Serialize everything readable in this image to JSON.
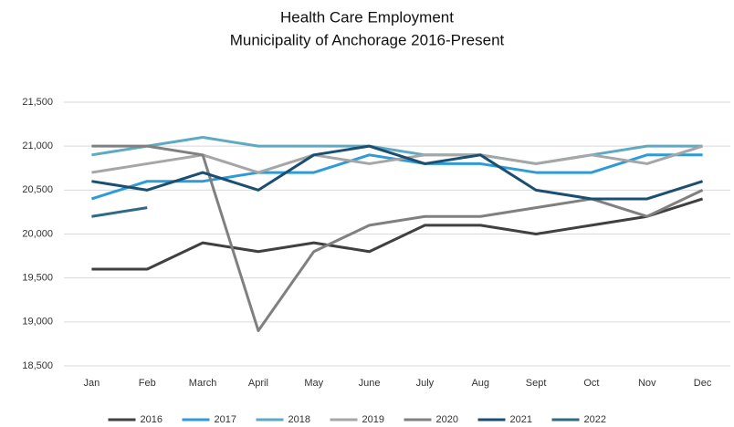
{
  "chart_data": {
    "type": "line",
    "title": "Health Care Employment",
    "subtitle": "Municipality of Anchorage 2016-Present",
    "categories": [
      "Jan",
      "Feb",
      "March",
      "April",
      "May",
      "June",
      "July",
      "Aug",
      "Sept",
      "Oct",
      "Nov",
      "Dec"
    ],
    "series": [
      {
        "name": "2016",
        "color": "#404040",
        "values": [
          19600,
          19600,
          19900,
          19800,
          19900,
          19800,
          20100,
          20100,
          20000,
          20100,
          20200,
          20400
        ]
      },
      {
        "name": "2017",
        "color": "#2e9bd6",
        "values": [
          20400,
          20600,
          20600,
          20700,
          20700,
          20900,
          20800,
          20800,
          20700,
          20700,
          20900,
          20900
        ]
      },
      {
        "name": "2018",
        "color": "#5fa9c2",
        "values": [
          20900,
          21000,
          21100,
          21000,
          21000,
          21000,
          20900,
          20900,
          20800,
          20900,
          21000,
          21000
        ]
      },
      {
        "name": "2019",
        "color": "#a6a6a6",
        "values": [
          20700,
          20800,
          20900,
          20700,
          20900,
          20800,
          20900,
          20900,
          20800,
          20900,
          20800,
          21000
        ]
      },
      {
        "name": "2020",
        "color": "#808080",
        "values": [
          21000,
          21000,
          20900,
          18900,
          19800,
          20100,
          20200,
          20200,
          20300,
          20400,
          20200,
          20500
        ]
      },
      {
        "name": "2021",
        "color": "#1b4f72",
        "values": [
          20600,
          20500,
          20700,
          20500,
          20900,
          21000,
          20800,
          20900,
          20500,
          20400,
          20400,
          20600
        ]
      },
      {
        "name": "2022",
        "color": "#2f6a82",
        "values": [
          20200,
          20300,
          null,
          null,
          null,
          null,
          null,
          null,
          null,
          null,
          null,
          null
        ]
      }
    ],
    "ylim": [
      18500,
      21500
    ],
    "yticks": [
      {
        "value": 18500,
        "label": "18,500"
      },
      {
        "value": 19000,
        "label": "19,000"
      },
      {
        "value": 19500,
        "label": "19,500"
      },
      {
        "value": 20000,
        "label": "20,000"
      },
      {
        "value": 20500,
        "label": "20,500"
      },
      {
        "value": 21000,
        "label": "21,000"
      },
      {
        "value": 21500,
        "label": "21,500"
      }
    ],
    "grid": true,
    "legend": "bottom"
  }
}
